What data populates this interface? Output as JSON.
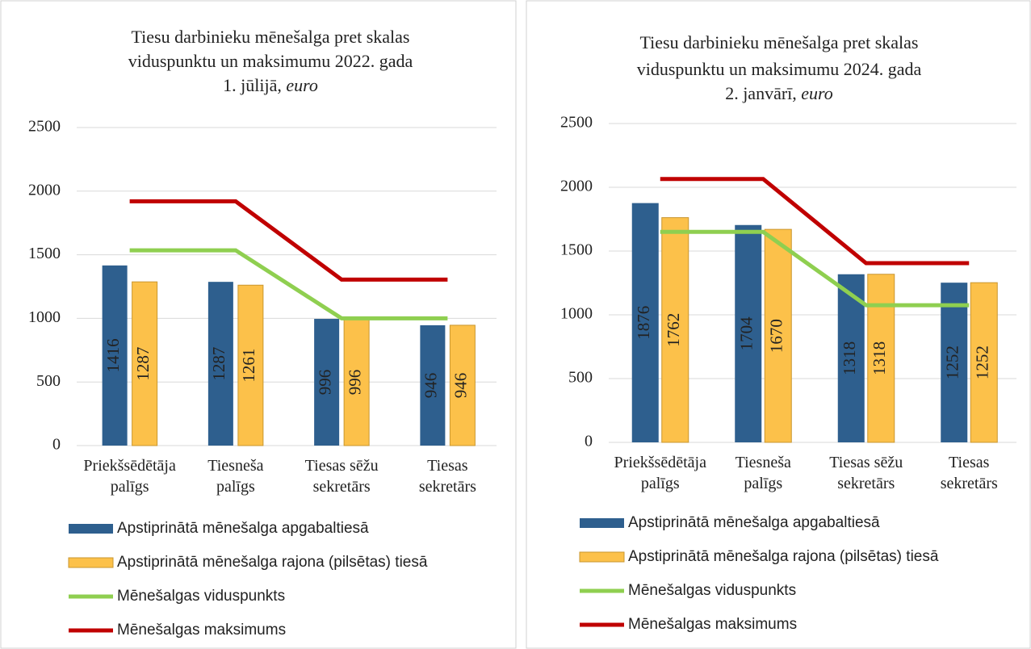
{
  "chart_data": [
    {
      "type": "bar",
      "title": [
        "Tiesu darbinieku mēnešalga pret skalas",
        "viduspunktu un maksimumu 2022. gada",
        "1. jūlijā,"
      ],
      "title_unit": "euro",
      "categories": [
        "Priekšsēdētāja palīgs",
        "Tiesneša palīgs",
        "Tiesas sēžu sekretārs",
        "Tiesas sekretārs"
      ],
      "series": [
        {
          "name": "Apstiprinātā mēnešalga apgabaltiesā",
          "type": "bar",
          "color": "#2e5f8e",
          "label_color": "#ffffff",
          "values": [
            1416,
            1287,
            996,
            946
          ]
        },
        {
          "name": "Apstiprinātā mēnešalga rajona (pilsētas) tiesā",
          "type": "bar",
          "color": "#fcc14a",
          "label_color": "#1a1a1a",
          "values": [
            1287,
            1261,
            996,
            946
          ]
        },
        {
          "name": "Mēnešalgas viduspunkts",
          "type": "line",
          "color": "#8fcf50",
          "values": [
            1535,
            1535,
            1000,
            1000
          ]
        },
        {
          "name": "Mēnešalgas maksimums",
          "type": "line",
          "color": "#c00000",
          "values": [
            1920,
            1920,
            1305,
            1305
          ]
        }
      ],
      "ylim": [
        0,
        2500
      ],
      "yticks": [
        0,
        500,
        1000,
        1500,
        2000,
        2500
      ],
      "grid": true,
      "legend": "bottom"
    },
    {
      "type": "bar",
      "title": [
        "Tiesu darbinieku mēnešalga pret skalas",
        "viduspunktu un maksimumu 2024. gada",
        "2. janvārī,"
      ],
      "title_unit": "euro",
      "categories": [
        "Priekšsēdētāja palīgs",
        "Tiesneša palīgs",
        "Tiesas sēžu sekretārs",
        "Tiesas sekretārs"
      ],
      "series": [
        {
          "name": "Apstiprinātā mēnešalga apgabaltiesā",
          "type": "bar",
          "color": "#2e5f8e",
          "label_color": "#ffffff",
          "values": [
            1876,
            1704,
            1318,
            1252
          ]
        },
        {
          "name": "Apstiprinātā mēnešalga rajona (pilsētas) tiesā",
          "type": "bar",
          "color": "#fcc14a",
          "label_color": "#1a1a1a",
          "values": [
            1762,
            1670,
            1318,
            1252
          ]
        },
        {
          "name": "Mēnešalgas viduspunkts",
          "type": "line",
          "color": "#8fcf50",
          "values": [
            1650,
            1650,
            1075,
            1075
          ]
        },
        {
          "name": "Mēnešalgas maksimums",
          "type": "line",
          "color": "#c00000",
          "values": [
            2065,
            2065,
            1405,
            1405
          ]
        }
      ],
      "ylim": [
        0,
        2500
      ],
      "yticks": [
        0,
        500,
        1000,
        1500,
        2000,
        2500
      ],
      "grid": true,
      "legend": "bottom"
    }
  ]
}
